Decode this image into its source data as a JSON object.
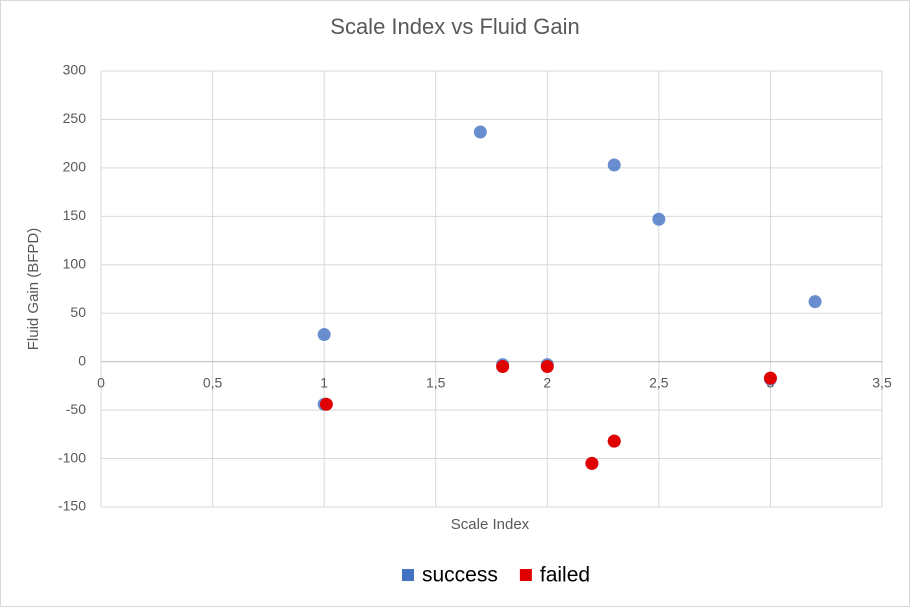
{
  "chart_data": {
    "type": "scatter",
    "title": "Scale Index vs Fluid Gain",
    "x_label": "Scale Index",
    "y_label": "Fluid Gain (BFPD)",
    "series": [
      {
        "name": "success",
        "color": "#4472c4",
        "x": [
          1.0,
          1.0,
          1.7,
          1.8,
          2.0,
          2.3,
          2.5,
          3.0,
          3.2,
          2.2,
          2.3
        ],
        "values": [
          28,
          -44,
          237,
          -3,
          -3,
          203,
          147,
          -18,
          62,
          -105,
          -82
        ]
      },
      {
        "name": "failed",
        "color": "#e00000",
        "x": [
          1.01,
          1.8,
          2.0,
          2.2,
          2.3,
          3.0
        ],
        "values": [
          -44,
          -5,
          -5,
          -105,
          -82,
          -17
        ]
      }
    ],
    "xlim": [
      0,
      3.5
    ],
    "xticks": [
      0,
      {
        "value": 0.5,
        "label": "0,5"
      },
      1,
      {
        "value": 1.5,
        "label": "1,5"
      },
      2,
      {
        "value": 2.5,
        "label": "2,5"
      },
      3,
      {
        "value": 3.5,
        "label": "3,5"
      }
    ],
    "ylim": [
      -150,
      300
    ],
    "yticks": [
      -150,
      -100,
      -50,
      0,
      50,
      100,
      150,
      200,
      250,
      300
    ],
    "grid": true,
    "legend": "bottom"
  }
}
